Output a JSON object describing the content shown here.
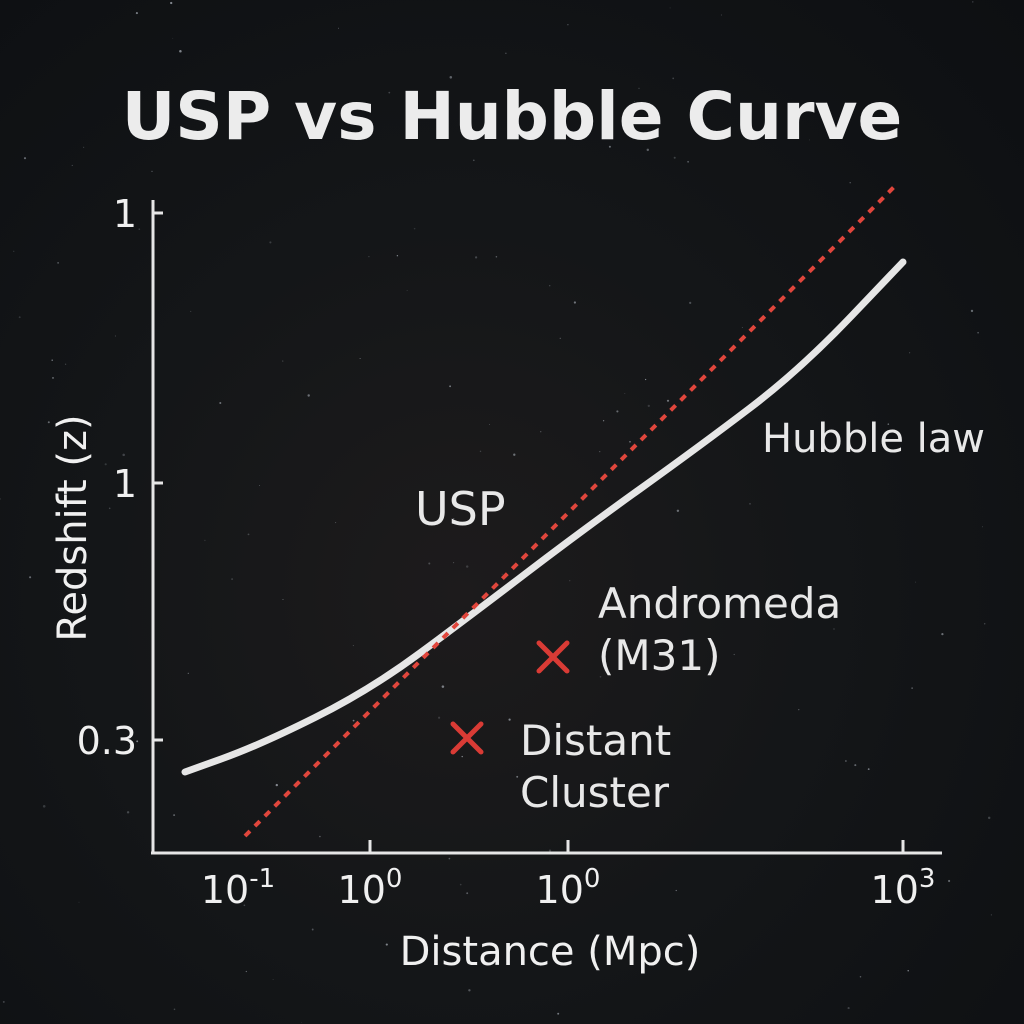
{
  "chart_data": {
    "type": "line",
    "title": "USP vs Hubble Curve",
    "xlabel": "Distance (Mpc)",
    "ylabel": "Redshift (z)",
    "x_ticks": [
      {
        "base": "10",
        "exp": "-1"
      },
      {
        "base": "10",
        "exp": "0"
      },
      {
        "base": "10",
        "exp": "0"
      },
      {
        "base": "10",
        "exp": "3"
      }
    ],
    "y_ticks": [
      "1",
      "1",
      "0.3"
    ],
    "series": [
      {
        "name": "Hubble law",
        "style": "solid",
        "color": "#e6e6e6",
        "points": [
          [
            0.06,
            0.28
          ],
          [
            0.2,
            0.31
          ],
          [
            1.0,
            0.37
          ],
          [
            4.0,
            0.47
          ],
          [
            20,
            0.6
          ],
          [
            100,
            0.77
          ],
          [
            1000,
            1.0
          ]
        ]
      },
      {
        "name": "USP",
        "style": "dotted",
        "color": "#e0463c",
        "points": [
          [
            0.1,
            0.22
          ],
          [
            1000,
            1.08
          ]
        ]
      }
    ],
    "markers": [
      {
        "label_lines": [
          "Andromeda",
          "(M31)"
        ],
        "marker": "x",
        "color": "#d93b35",
        "x": 10,
        "y": 0.47
      },
      {
        "label_lines": [
          "Distant",
          "Cluster"
        ],
        "marker": "x",
        "color": "#d93b35",
        "x": 4,
        "y": 0.38
      }
    ]
  }
}
